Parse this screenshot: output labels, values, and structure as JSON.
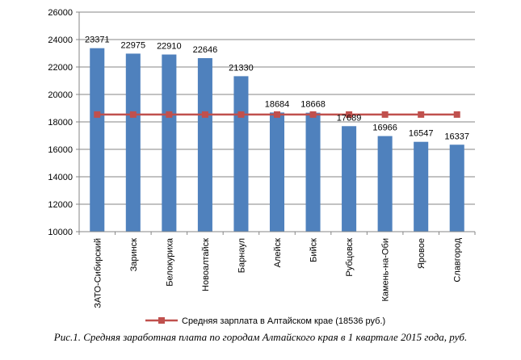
{
  "caption": "Рис.1. Средняя заработная плата по городам Алтайского края в 1 квартале 2015 года, руб.",
  "colors": {
    "bar": "#4F81BD",
    "line": "#C0504D",
    "axis": "#868686",
    "grid": "#868686"
  },
  "chart_data": {
    "type": "bar",
    "title": "",
    "xlabel": "",
    "ylabel": "",
    "ylim": [
      10000,
      26000
    ],
    "yticks": [
      10000,
      12000,
      14000,
      16000,
      18000,
      20000,
      22000,
      24000,
      26000
    ],
    "grid": true,
    "legend_position": "bottom",
    "categories": [
      "ЗАТО-Сибирский",
      "Заринск",
      "Белокуриха",
      "Новоалтайск",
      "Барнаул",
      "Алейск",
      "Бийск",
      "Рубцовск",
      "Камень-на-Оби",
      "Яровое",
      "Славгород"
    ],
    "series": [
      {
        "name": "Средняя заработная плата",
        "type": "bar",
        "values": [
          23371,
          22975,
          22910,
          22646,
          21330,
          18684,
          18668,
          17689,
          16966,
          16547,
          16337
        ],
        "labels": [
          "23371",
          "22975",
          "22910",
          "22646",
          "21330",
          "18684",
          "18668",
          "17689",
          "16966",
          "16547",
          "16337"
        ]
      },
      {
        "name": "Средняя зарплата в Алтайском крае (18536 руб.)",
        "type": "line",
        "values": [
          18536,
          18536,
          18536,
          18536,
          18536,
          18536,
          18536,
          18536,
          18536,
          18536,
          18536
        ]
      }
    ]
  }
}
